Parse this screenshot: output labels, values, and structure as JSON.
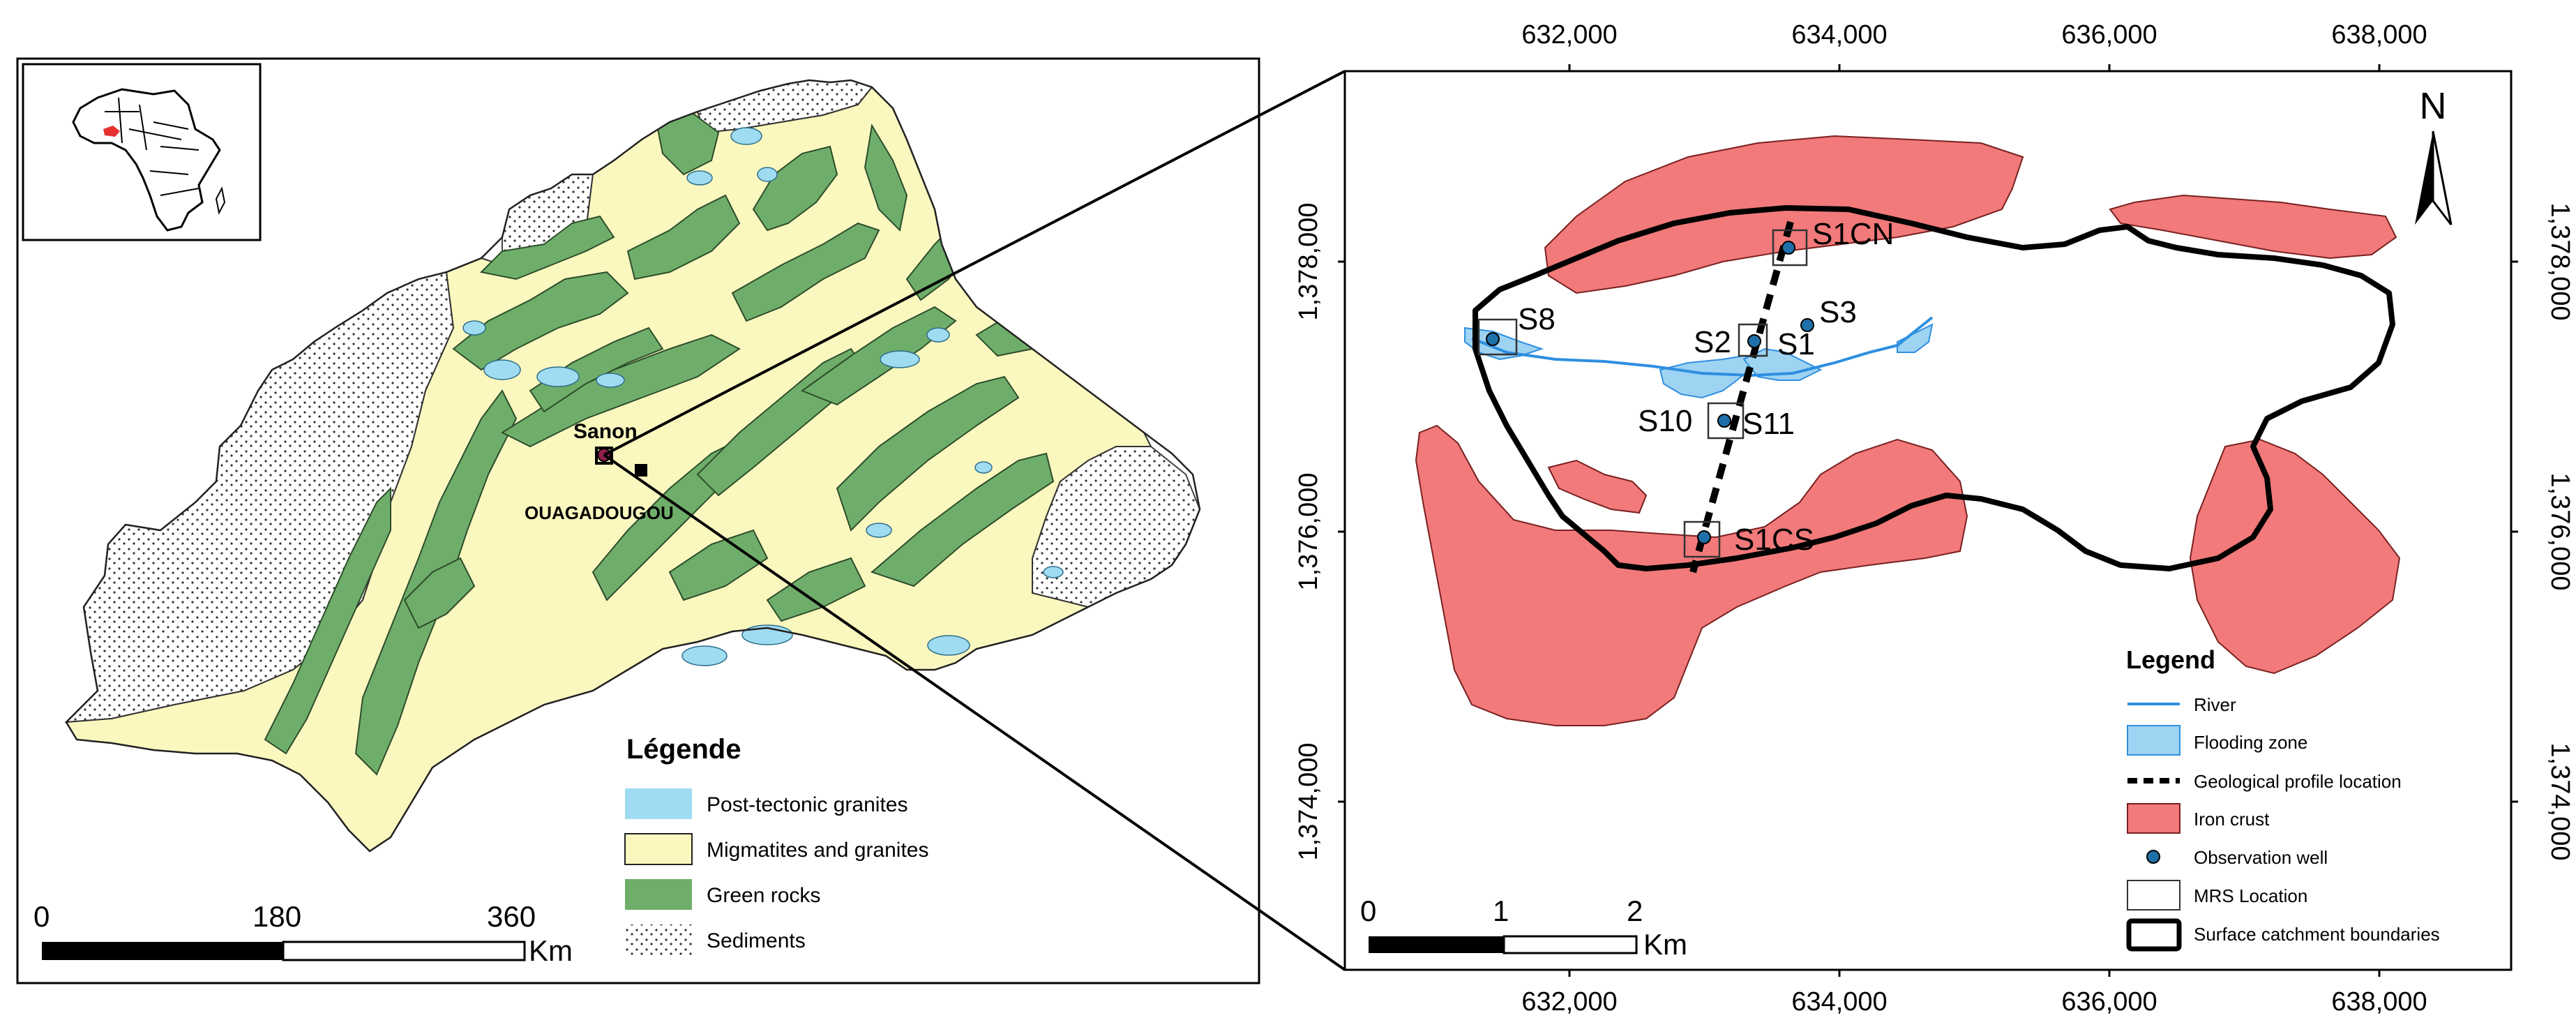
{
  "left_map": {
    "city_label": "Sanon",
    "capital_label": "OUAGADOUGOU",
    "legend": {
      "title": "Légende",
      "items": [
        {
          "label": "Post-tectonic granites",
          "color": "#9fdcf2"
        },
        {
          "label": "Migmatites and granites",
          "color": "#fbf8bf"
        },
        {
          "label": "Green rocks",
          "color": "#6fae6a"
        },
        {
          "label": "Sediments",
          "color": "#ffffff"
        }
      ]
    },
    "scale": {
      "ticks": [
        "0",
        "180",
        "360"
      ],
      "unit": "Km"
    }
  },
  "right_map": {
    "x_ticks": [
      "632,000",
      "634,000",
      "636,000",
      "638,000"
    ],
    "y_ticks": [
      "1,378,000",
      "1,376,000",
      "1,374,000"
    ],
    "north_label": "N",
    "wells": [
      "S1CN",
      "S8",
      "S3",
      "S2",
      "S1",
      "S10",
      "S11",
      "S1CS"
    ],
    "legend": {
      "title": "Legend",
      "items": [
        {
          "label": "River",
          "color": "#2e8fe0"
        },
        {
          "label": "Flooding zone",
          "color": "#9fd3f2"
        },
        {
          "label": "Geological profile location",
          "color": "#000000"
        },
        {
          "label": "Iron crust",
          "color": "#f27a7a"
        },
        {
          "label": "Observation well",
          "color": "#1f6fa8"
        },
        {
          "label": "MRS Location",
          "color": "#ffffff"
        },
        {
          "label": "Surface catchment boundaries",
          "color": "#000000"
        }
      ]
    },
    "scale": {
      "ticks": [
        "0",
        "1",
        "2"
      ],
      "unit": "Km"
    }
  },
  "colors": {
    "migmatites": "#fbf8bf",
    "green_rocks": "#6fae6a",
    "post_tectonic": "#9fdcf2",
    "iron_crust": "#f27a7a",
    "flooding": "#9fd3f2",
    "river": "#2e8fe0",
    "well": "#1f6fa8"
  }
}
